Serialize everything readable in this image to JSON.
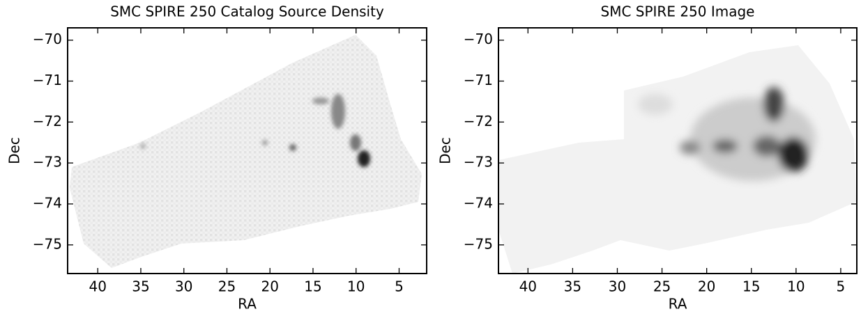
{
  "chart_data": [
    {
      "type": "image",
      "title": "SMC SPIRE 250 Catalog Source Density",
      "x_label": "RA",
      "y_label": "Dec",
      "xlim": [
        43.5,
        1.8
      ],
      "ylim": [
        -75.7,
        -69.7
      ],
      "xticks": [
        40,
        35,
        30,
        25,
        20,
        15,
        10,
        5
      ],
      "yticks": [
        {
          "value": -70,
          "label": "−70"
        },
        {
          "value": -71,
          "label": "−71"
        },
        {
          "value": -72,
          "label": "−72"
        },
        {
          "value": -73,
          "label": "−73"
        },
        {
          "value": -74,
          "label": "−74"
        },
        {
          "value": -75,
          "label": "−75"
        }
      ]
    },
    {
      "type": "image",
      "title": "SMC SPIRE 250 Image",
      "x_label": "RA",
      "y_label": "Dec",
      "xlim": [
        43.3,
        3.2
      ],
      "ylim": [
        -75.7,
        -69.7
      ],
      "xticks": [
        40,
        35,
        30,
        25,
        20,
        15,
        10,
        5
      ],
      "yticks": [
        {
          "value": -70,
          "label": "−70"
        },
        {
          "value": -71,
          "label": "−71"
        },
        {
          "value": -72,
          "label": "−72"
        },
        {
          "value": -73,
          "label": "−73"
        },
        {
          "value": -74,
          "label": "−74"
        },
        {
          "value": -75,
          "label": "−75"
        }
      ]
    }
  ]
}
